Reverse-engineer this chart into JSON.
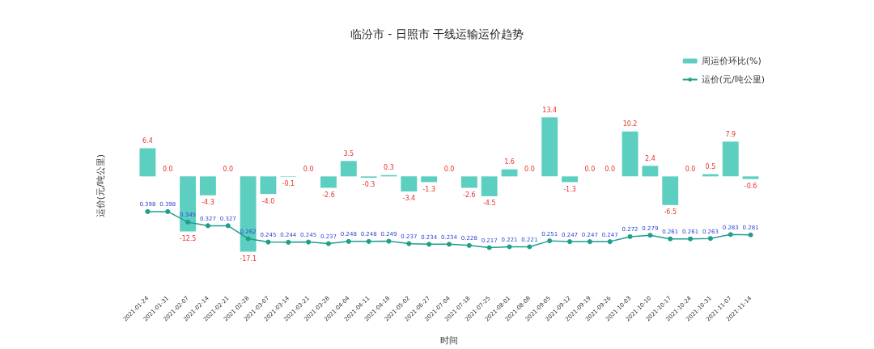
{
  "chart_data": {
    "type": "bar",
    "title": "临汾市 - 日照市 干线运输运价趋势",
    "xlabel": "时间",
    "y2label": "运价(元/吨公里)",
    "categories": [
      "2021-01-24",
      "2021-01-31",
      "2021-02-07",
      "2021-02-14",
      "2021-02-21",
      "2021-02-28",
      "2021-03-07",
      "2021-03-14",
      "2021-03-21",
      "2021-03-28",
      "2021-04-04",
      "2021-04-11",
      "2021-04-18",
      "2021-05-02",
      "2021-06-27",
      "2021-07-04",
      "2021-07-18",
      "2021-07-25",
      "2021-08-01",
      "2021-08-08",
      "2021-09-05",
      "2021-09-12",
      "2021-09-19",
      "2021-09-26",
      "2021-10-03",
      "2021-10-10",
      "2021-10-17",
      "2021-10-24",
      "2021-10-31",
      "2021-11-07",
      "2021-11-14"
    ],
    "series": [
      {
        "name": "周运价环比(%)",
        "color": "#5ccfc1",
        "values": [
          6.4,
          0.0,
          -12.5,
          -4.3,
          0.0,
          -17.1,
          -4.0,
          -0.1,
          0.0,
          -2.6,
          3.5,
          -0.3,
          0.3,
          -3.4,
          -1.3,
          0.0,
          -2.6,
          -4.5,
          1.6,
          0.0,
          13.4,
          -1.3,
          0.0,
          0.0,
          10.2,
          2.4,
          -6.5,
          0.0,
          0.5,
          7.9,
          -0.6
        ],
        "value_labels": [
          "6.4",
          "0.0",
          "-12.5",
          "-4.3",
          "0.0",
          "-17.1",
          "-4.0",
          "-0.1",
          "0.0",
          "-2.6",
          "3.5",
          "-0.3",
          "0.3",
          "-3.4",
          "-1.3",
          "0.0",
          "-2.6",
          "-4.5",
          "1.6",
          "0.0",
          "13.4",
          "-1.3",
          "0.0",
          "0.0",
          "10.2",
          "2.4",
          "-6.5",
          "0.0",
          "0.5",
          "7.9",
          "-0.6"
        ]
      },
      {
        "name": "运价(元/吨公里)",
        "type": "line",
        "axis": "y2",
        "color": "#1f9e8c",
        "values": [
          0.398,
          0.398,
          0.345,
          0.327,
          0.327,
          0.262,
          0.245,
          0.244,
          0.245,
          0.237,
          0.248,
          0.248,
          0.249,
          0.237,
          0.234,
          0.234,
          0.228,
          0.217,
          0.221,
          0.221,
          0.251,
          0.247,
          0.247,
          0.247,
          0.272,
          0.279,
          0.261,
          0.261,
          0.263,
          0.283,
          0.281
        ]
      }
    ],
    "data_labels": true,
    "legend": "top right",
    "grid": false,
    "tick_labels": "x",
    "marker": "circle",
    "line_style": "solid"
  }
}
